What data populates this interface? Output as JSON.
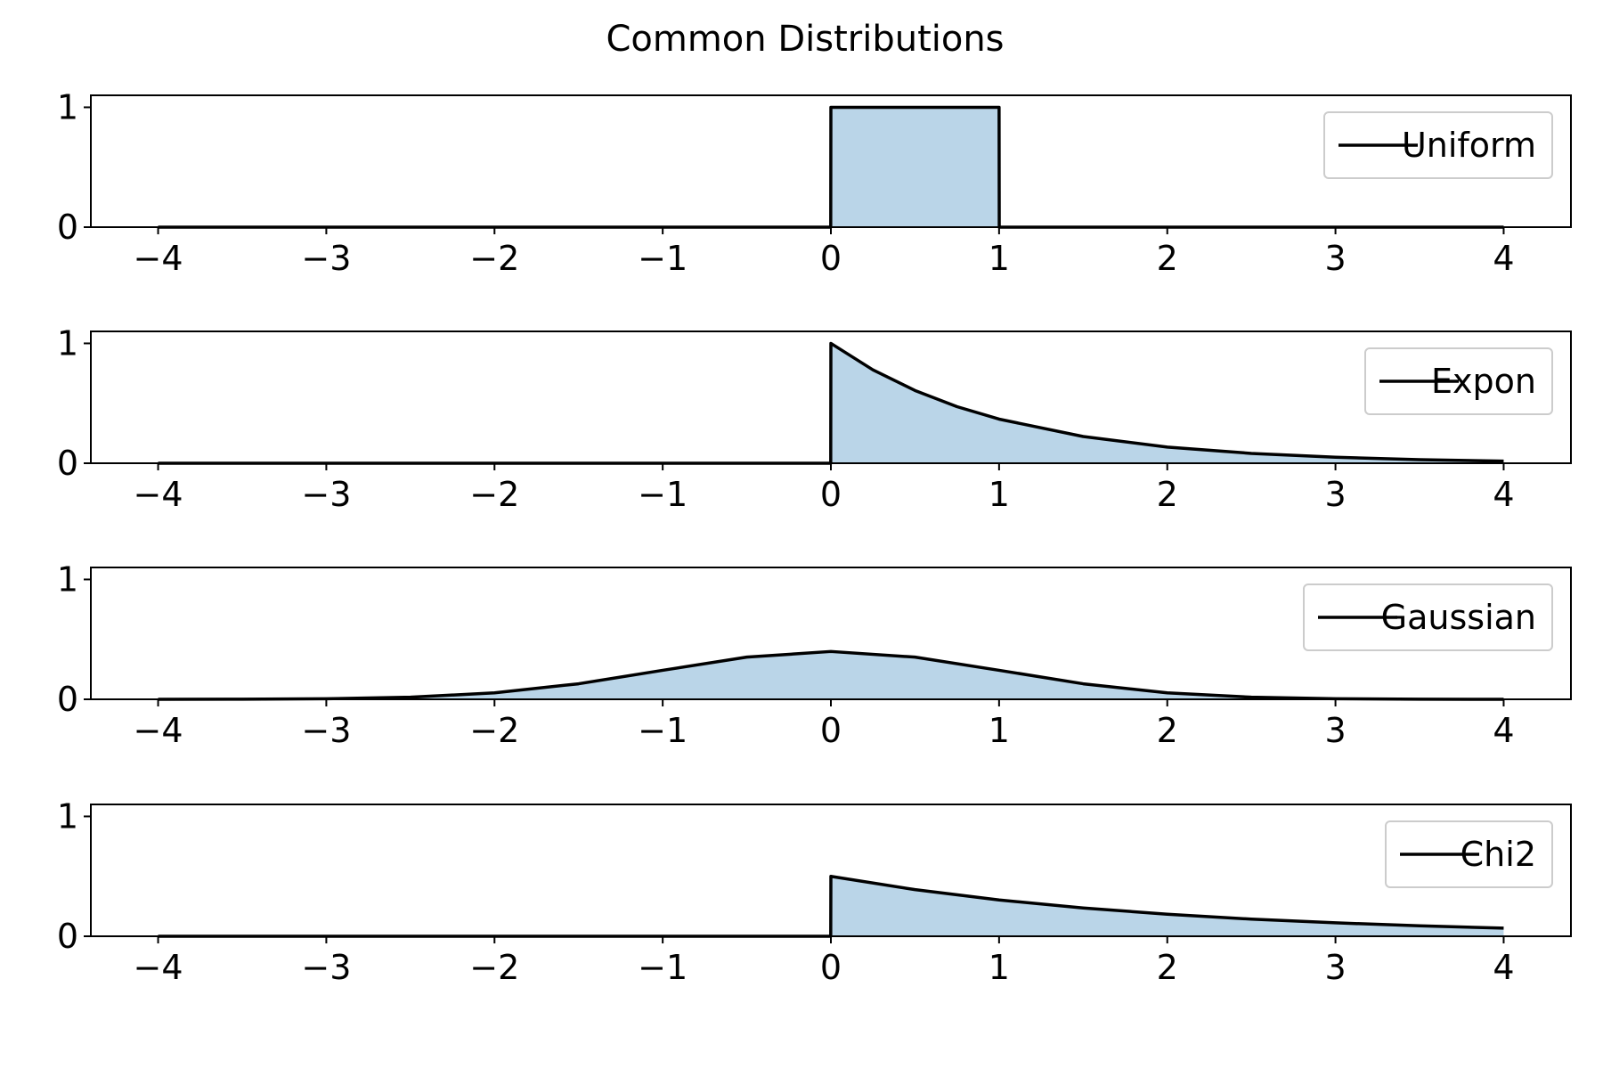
{
  "figure": {
    "title": "Common Distributions",
    "line_color": "#000000",
    "fill_color": "#bad5e8",
    "legend_border_color": "#cccccc"
  },
  "chart_data": [
    {
      "type": "area",
      "series": [
        {
          "name": "Uniform",
          "function": "uniform pdf on [0, 1]"
        }
      ],
      "x": [
        -4,
        -0.001,
        0,
        0.5,
        1,
        1.001,
        4
      ],
      "y": [
        0,
        0,
        1,
        1,
        1,
        0,
        0
      ],
      "xlim": [
        -4.4,
        4.4
      ],
      "ylim": [
        0,
        1.1
      ],
      "xticks": [
        -4,
        -3,
        -2,
        -1,
        0,
        1,
        2,
        3,
        4
      ],
      "yticks": [
        0,
        1
      ],
      "legend": "upper right",
      "grid": false
    },
    {
      "type": "area",
      "series": [
        {
          "name": "Expon",
          "function": "exp(-x) for x >= 0"
        }
      ],
      "x": [
        -4,
        -0.001,
        0,
        0.25,
        0.5,
        0.75,
        1,
        1.5,
        2,
        2.5,
        3,
        3.5,
        4
      ],
      "y": [
        0,
        0,
        1,
        0.779,
        0.607,
        0.472,
        0.368,
        0.223,
        0.135,
        0.082,
        0.05,
        0.03,
        0.018
      ],
      "xlim": [
        -4.4,
        4.4
      ],
      "ylim": [
        0,
        1.1
      ],
      "xticks": [
        -4,
        -3,
        -2,
        -1,
        0,
        1,
        2,
        3,
        4
      ],
      "yticks": [
        0,
        1
      ],
      "legend": "upper right",
      "grid": false
    },
    {
      "type": "area",
      "series": [
        {
          "name": "Gaussian",
          "function": "standard normal pdf"
        }
      ],
      "x": [
        -4,
        -3.5,
        -3,
        -2.5,
        -2,
        -1.5,
        -1,
        -0.5,
        0,
        0.5,
        1,
        1.5,
        2,
        2.5,
        3,
        3.5,
        4
      ],
      "y": [
        0.0001,
        0.0009,
        0.0044,
        0.0175,
        0.054,
        0.1295,
        0.242,
        0.352,
        0.399,
        0.352,
        0.242,
        0.1295,
        0.054,
        0.0175,
        0.0044,
        0.0009,
        0.0001
      ],
      "xlim": [
        -4.4,
        4.4
      ],
      "ylim": [
        0,
        1.1
      ],
      "xticks": [
        -4,
        -3,
        -2,
        -1,
        0,
        1,
        2,
        3,
        4
      ],
      "yticks": [
        0,
        1
      ],
      "legend": "upper right",
      "grid": false
    },
    {
      "type": "area",
      "series": [
        {
          "name": "Chi2",
          "function": "0.5 * exp(-x/2) for x >= 0"
        }
      ],
      "x": [
        -4,
        -0.001,
        0,
        0.5,
        1,
        1.5,
        2,
        2.5,
        3,
        3.5,
        4
      ],
      "y": [
        0,
        0,
        0.5,
        0.389,
        0.303,
        0.236,
        0.184,
        0.143,
        0.112,
        0.087,
        0.068
      ],
      "xlim": [
        -4.4,
        4.4
      ],
      "ylim": [
        0,
        1.1
      ],
      "xticks": [
        -4,
        -3,
        -2,
        -1,
        0,
        1,
        2,
        3,
        4
      ],
      "yticks": [
        0,
        1
      ],
      "legend": "upper right",
      "grid": false
    }
  ]
}
